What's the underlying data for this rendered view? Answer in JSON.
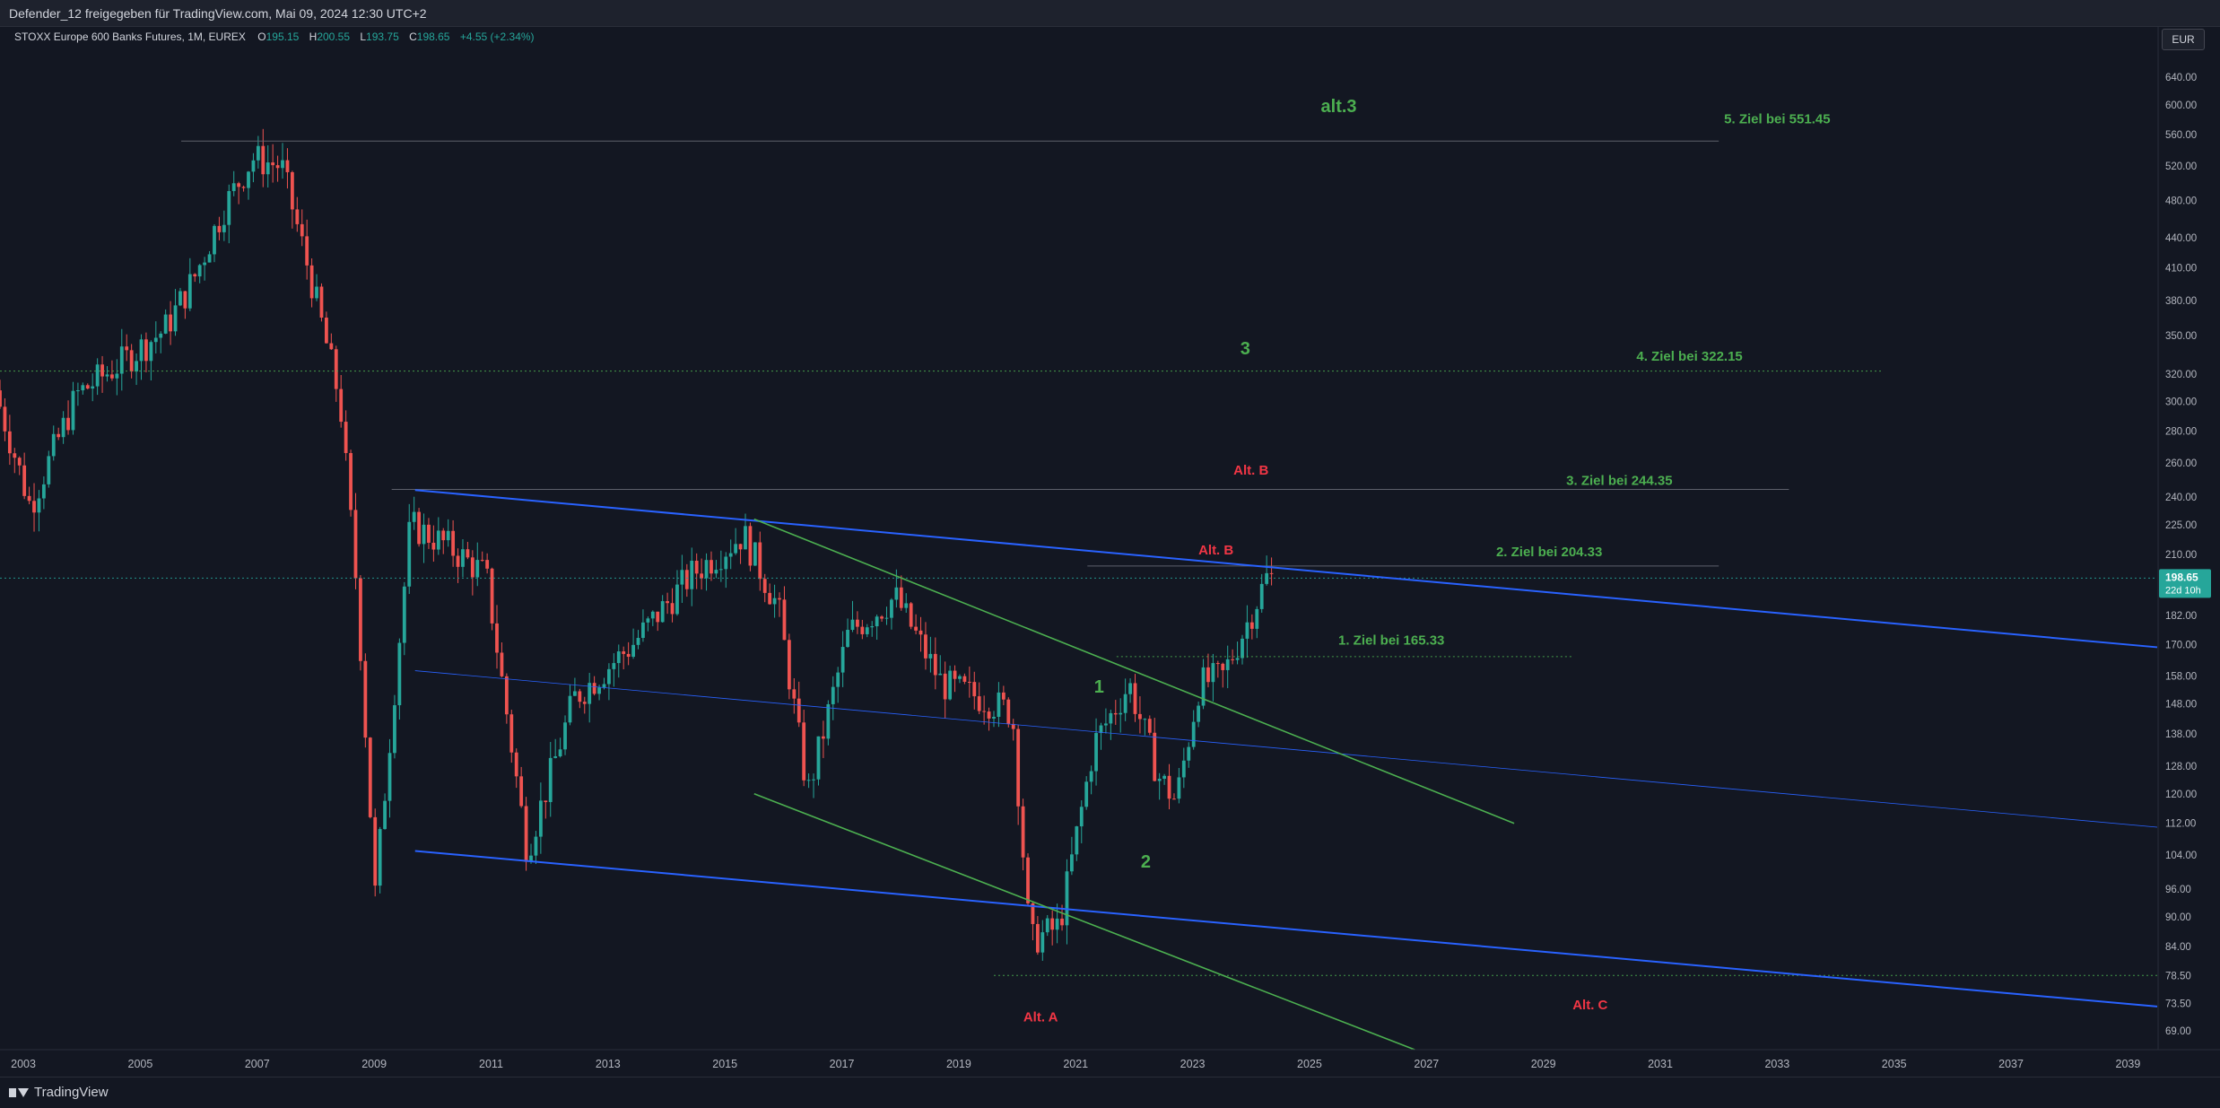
{
  "header": {
    "share_text": "Defender_12 freigegeben für TradingView.com, Mai 09, 2024 12:30 UTC+2"
  },
  "legend": {
    "symbol": "STOXX Europe 600 Banks Futures, 1M, EUREX",
    "open_label": "O",
    "open": "195.15",
    "high_label": "H",
    "high": "200.55",
    "low_label": "L",
    "low": "193.75",
    "close_label": "C",
    "close": "198.65",
    "change": "+4.55 (+2.34%)"
  },
  "currency_button": "EUR",
  "footer": {
    "brand": "TradingView"
  },
  "colors": {
    "background": "#131722",
    "up": "#26a69a",
    "down": "#ef5350",
    "channel": "#2962ff",
    "trend": "#4caf50",
    "target": "#4caf50",
    "alt": "#f23645"
  },
  "chart_data": {
    "type": "candlestick",
    "y_scale": "log",
    "ylim": [
      66,
      720
    ],
    "xlim": [
      2002.6,
      2039.5
    ],
    "y_ticks": [
      "640.00",
      "600.00",
      "560.00",
      "520.00",
      "480.00",
      "440.00",
      "410.00",
      "380.00",
      "350.00",
      "320.00",
      "300.00",
      "280.00",
      "260.00",
      "240.00",
      "225.00",
      "210.00",
      "182.00",
      "170.00",
      "158.00",
      "148.00",
      "138.00",
      "128.00",
      "120.00",
      "112.00",
      "104.00",
      "96.00",
      "90.00",
      "84.00",
      "78.50",
      "73.50",
      "69.00"
    ],
    "x_ticks": [
      "2003",
      "2005",
      "2007",
      "2009",
      "2011",
      "2013",
      "2015",
      "2017",
      "2019",
      "2021",
      "2023",
      "2025",
      "2027",
      "2029",
      "2031",
      "2033",
      "2035",
      "2037",
      "2039"
    ],
    "last_price": {
      "value": "198.65",
      "countdown": "22d 10h"
    },
    "price_path": [
      [
        2002.6,
        308
      ],
      [
        2003.2,
        235
      ],
      [
        2004.0,
        305
      ],
      [
        2004.8,
        330
      ],
      [
        2005.5,
        355
      ],
      [
        2006.0,
        400
      ],
      [
        2006.5,
        470
      ],
      [
        2007.0,
        530
      ],
      [
        2007.5,
        520
      ],
      [
        2008.0,
        400
      ],
      [
        2008.5,
        300
      ],
      [
        2008.8,
        190
      ],
      [
        2009.1,
        95
      ],
      [
        2009.7,
        225
      ],
      [
        2010.3,
        215
      ],
      [
        2011.0,
        200
      ],
      [
        2011.7,
        105
      ],
      [
        2012.5,
        150
      ],
      [
        2013.5,
        170
      ],
      [
        2014.5,
        200
      ],
      [
        2015.4,
        220
      ],
      [
        2016.0,
        185
      ],
      [
        2016.5,
        120
      ],
      [
        2017.2,
        175
      ],
      [
        2018.0,
        190
      ],
      [
        2018.8,
        155
      ],
      [
        2019.5,
        150
      ],
      [
        2020.0,
        145
      ],
      [
        2020.3,
        85
      ],
      [
        2020.8,
        88
      ],
      [
        2021.4,
        135
      ],
      [
        2022.0,
        155
      ],
      [
        2022.5,
        125
      ],
      [
        2022.8,
        118
      ],
      [
        2023.2,
        155
      ],
      [
        2023.6,
        158
      ],
      [
        2024.0,
        178
      ],
      [
        2024.35,
        198.65
      ]
    ],
    "levels": [
      {
        "value": 551.45,
        "x_range": [
          2005.7,
          2032.0
        ],
        "style": "solid"
      },
      {
        "value": 322.15,
        "x_range": [
          2002.6,
          2034.8
        ],
        "style": "dotted"
      },
      {
        "value": 244.35,
        "x_range": [
          2009.3,
          2033.2
        ],
        "style": "solid"
      },
      {
        "value": 204.33,
        "x_range": [
          2021.2,
          2032.0
        ],
        "style": "solid"
      },
      {
        "value": 198.65,
        "x_range": [
          2002.6,
          2039.5
        ],
        "style": "dotted"
      },
      {
        "value": 165.33,
        "x_range": [
          2021.7,
          2029.5
        ],
        "style": "dotted"
      },
      {
        "value": 78.5,
        "x_range": [
          2019.6,
          2039.5
        ],
        "style": "dotted"
      }
    ],
    "channel_lines": [
      {
        "from": [
          2009.7,
          244
        ],
        "to": [
          2039.5,
          169
        ],
        "width": 2
      },
      {
        "from": [
          2009.7,
          160
        ],
        "to": [
          2039.5,
          111
        ],
        "width": 0.8
      },
      {
        "from": [
          2009.7,
          105
        ],
        "to": [
          2039.5,
          73
        ],
        "width": 2
      }
    ],
    "trend_lines": [
      {
        "from": [
          2015.5,
          228
        ],
        "to": [
          2028.5,
          112
        ]
      },
      {
        "from": [
          2015.5,
          120
        ],
        "to": [
          2026.8,
          66
        ]
      }
    ],
    "annotations": [
      {
        "text": "alt.3",
        "x": 2025.5,
        "y": 590,
        "kind": "wave"
      },
      {
        "text": "5. Ziel bei 551.45",
        "x": 2033.0,
        "y": 575,
        "kind": "target"
      },
      {
        "text": "3",
        "x": 2023.9,
        "y": 335,
        "kind": "wave"
      },
      {
        "text": "4. Ziel bei 322.15",
        "x": 2031.5,
        "y": 330,
        "kind": "target"
      },
      {
        "text": "Alt. B",
        "x": 2024.0,
        "y": 253,
        "kind": "alt"
      },
      {
        "text": "3. Ziel bei 244.35",
        "x": 2030.3,
        "y": 247,
        "kind": "target"
      },
      {
        "text": "Alt. B",
        "x": 2023.4,
        "y": 210,
        "kind": "alt"
      },
      {
        "text": "2. Ziel bei 204.33",
        "x": 2029.1,
        "y": 209,
        "kind": "target"
      },
      {
        "text": "1. Ziel bei 165.33",
        "x": 2026.4,
        "y": 170,
        "kind": "target"
      },
      {
        "text": "1",
        "x": 2021.4,
        "y": 152,
        "kind": "wave"
      },
      {
        "text": "2",
        "x": 2022.2,
        "y": 101,
        "kind": "wave"
      },
      {
        "text": "Alt. A",
        "x": 2020.4,
        "y": 70.5,
        "kind": "alt"
      },
      {
        "text": "Alt. C",
        "x": 2029.8,
        "y": 72.5,
        "kind": "alt"
      }
    ]
  }
}
